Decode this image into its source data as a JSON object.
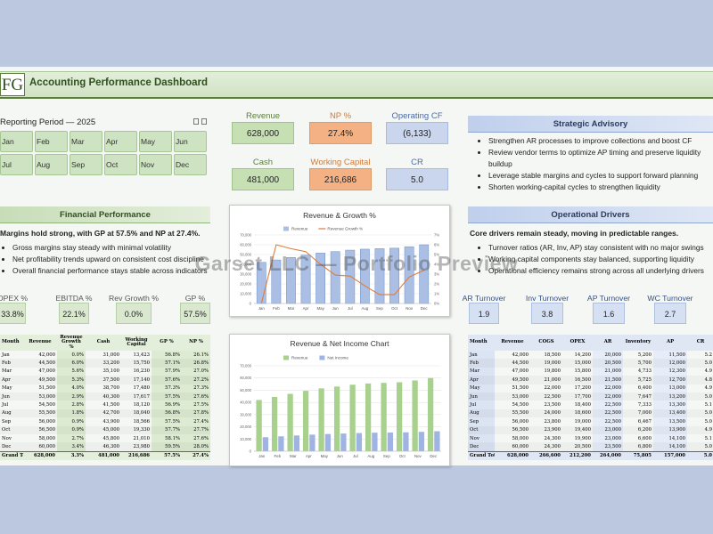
{
  "header": {
    "logo": "FG",
    "title": "Accounting Performance Dashboard"
  },
  "watermark": "Garset LLC — Portfolio Preview",
  "period": {
    "title": "Reporting Period — 2025",
    "months": [
      "Jan",
      "Feb",
      "Mar",
      "Apr",
      "May",
      "Jun",
      "Jul",
      "Aug",
      "Sep",
      "Oct",
      "Nov",
      "Dec"
    ]
  },
  "kpis": [
    {
      "label": "Revenue",
      "value": "628,000"
    },
    {
      "label": "NP %",
      "value": "27.4%"
    },
    {
      "label": "Operating CF",
      "value": "(6,133)"
    },
    {
      "label": "Cash",
      "value": "481,000"
    },
    {
      "label": "Working Capital",
      "value": "216,686"
    },
    {
      "label": "CR",
      "value": "5.0"
    }
  ],
  "strategic_advisory": {
    "title": "Strategic Advisory",
    "bullets": [
      "Strengthen AR processes to improve collections and boost CF",
      "Review vendor terms to optimize AP timing and preserve liquidity buildup",
      "Leverage stable margins and cycles to support forward planning",
      "Shorten working-capital cycles to strengthen liquidity"
    ]
  },
  "financial_performance": {
    "title": "Financial Performance",
    "summary": "Margins hold strong, with GP at 57.5% and NP at 27.4%.",
    "bullets": [
      "Gross margins stay steady with minimal volatility",
      "Net profitability trends upward on consistent cost discipline",
      "Overall financial performance stays stable across indicators"
    ],
    "ratios": [
      {
        "label": "OPEX %",
        "value": "33.8%"
      },
      {
        "label": "EBITDA %",
        "value": "22.1%"
      },
      {
        "label": "Rev Growth %",
        "value": "0.0%"
      },
      {
        "label": "GP %",
        "value": "57.5%"
      }
    ]
  },
  "operational_drivers": {
    "title": "Operational Drivers",
    "summary": "Core drivers remain steady, moving in predictable ranges.",
    "bullets": [
      "Turnover ratios (AR, Inv, AP) stay consistent with no major swings",
      "Working capital components stay balanced, supporting liquidity",
      "Operational efficiency remains strong across all underlying drivers"
    ],
    "ratios": [
      {
        "label": "AR Turnover",
        "value": "1.9"
      },
      {
        "label": "Inv Turnover",
        "value": "3.8"
      },
      {
        "label": "AP Turnover",
        "value": "1.6"
      },
      {
        "label": "WC Turnover",
        "value": "2.7"
      }
    ]
  },
  "chart_data": [
    {
      "type": "combo",
      "title": "Revenue & Growth %",
      "categories": [
        "Jan",
        "Feb",
        "Mar",
        "Apr",
        "May",
        "Jun",
        "Jul",
        "Aug",
        "Sep",
        "Oct",
        "Nov",
        "Dec"
      ],
      "series": [
        {
          "name": "Revenue",
          "type": "bar",
          "color": "#aabfe3",
          "values": [
            42000,
            44500,
            47000,
            49500,
            51500,
            53000,
            54500,
            55500,
            56000,
            56500,
            58000,
            60000
          ]
        },
        {
          "name": "Revenue Growth %",
          "type": "line",
          "axis": "y2",
          "color": "#e07b39",
          "values": [
            0,
            6.0,
            5.6,
            5.3,
            4.0,
            2.9,
            2.8,
            1.8,
            0.9,
            0.9,
            2.7,
            3.4
          ]
        }
      ],
      "ylim": [
        0,
        70000
      ],
      "yticks": [
        0,
        {
          "value": 10000,
          "label": "10,000"
        },
        {
          "value": 20000,
          "label": "20,000"
        },
        {
          "value": 30000,
          "label": "30,000"
        },
        {
          "value": 40000,
          "label": "40,000"
        },
        {
          "value": 50000,
          "label": "50,000"
        },
        {
          "value": 60000,
          "label": "60,000"
        },
        {
          "value": 70000,
          "label": "70,000"
        }
      ],
      "y2lim": [
        0,
        7
      ],
      "y2ticks": [
        {
          "value": 0,
          "label": "0%"
        },
        {
          "value": 1,
          "label": "1%"
        },
        {
          "value": 2,
          "label": "2%"
        },
        {
          "value": 3,
          "label": "3%"
        },
        {
          "value": 4,
          "label": "4%"
        },
        {
          "value": 5,
          "label": "5%"
        },
        {
          "value": 6,
          "label": "6%"
        },
        {
          "value": 7,
          "label": "7%"
        }
      ],
      "grid": true
    },
    {
      "type": "bar",
      "title": "Revenue & Net Income Chart",
      "categories": [
        "Jan",
        "Feb",
        "Mar",
        "Apr",
        "May",
        "Jun",
        "Jul",
        "Aug",
        "Sep",
        "Oct",
        "Nov",
        "Dec"
      ],
      "series": [
        {
          "name": "Revenue",
          "color": "#a9d18e",
          "values": [
            42000,
            44500,
            47000,
            49500,
            51500,
            53000,
            54500,
            55500,
            56000,
            56500,
            58000,
            60000
          ]
        },
        {
          "name": "Net Income",
          "color": "#9fb4e3",
          "values": [
            11500,
            12200,
            12900,
            13600,
            14100,
            14500,
            14900,
            15200,
            15300,
            15500,
            15900,
            16400
          ]
        }
      ],
      "ylim": [
        0,
        70000
      ],
      "yticks": [
        0,
        {
          "value": 10000,
          "label": "10,000"
        },
        {
          "value": 20000,
          "label": "20,000"
        },
        {
          "value": 30000,
          "label": "30,000"
        },
        {
          "value": 40000,
          "label": "40,000"
        },
        {
          "value": 50000,
          "label": "50,000"
        },
        {
          "value": 60000,
          "label": "60,000"
        },
        {
          "value": 70000,
          "label": "70,000"
        }
      ],
      "grid": true
    }
  ],
  "financial_table": {
    "columns": [
      "Month",
      "Revenue",
      "Revenue Growth %",
      "Cash",
      "Working Capital",
      "GP %",
      "NP %"
    ],
    "rows": [
      [
        "Jan",
        "42,000",
        "0.0%",
        "31,000",
        "13,423",
        "56.8%",
        "26.1%"
      ],
      [
        "Feb",
        "44,500",
        "6.0%",
        "33,200",
        "15,750",
        "57.1%",
        "26.8%"
      ],
      [
        "Mar",
        "47,000",
        "5.6%",
        "35,100",
        "16,230",
        "57.9%",
        "27.0%"
      ],
      [
        "Apr",
        "49,500",
        "5.3%",
        "37,500",
        "17,140",
        "57.6%",
        "27.2%"
      ],
      [
        "May",
        "51,500",
        "4.0%",
        "38,700",
        "17,480",
        "57.3%",
        "27.3%"
      ],
      [
        "Jun",
        "53,000",
        "2.9%",
        "40,300",
        "17,617",
        "57.5%",
        "27.6%"
      ],
      [
        "Jul",
        "54,500",
        "2.8%",
        "41,500",
        "18,120",
        "56.9%",
        "27.5%"
      ],
      [
        "Aug",
        "55,500",
        "1.8%",
        "42,700",
        "18,040",
        "56.8%",
        "27.8%"
      ],
      [
        "Sep",
        "56,000",
        "0.9%",
        "43,900",
        "18,566",
        "57.5%",
        "27.4%"
      ],
      [
        "Oct",
        "56,500",
        "0.9%",
        "45,000",
        "19,330",
        "57.7%",
        "27.7%"
      ],
      [
        "Nov",
        "58,000",
        "2.7%",
        "45,800",
        "21,010",
        "58.1%",
        "27.6%"
      ],
      [
        "Dec",
        "60,000",
        "3.4%",
        "46,300",
        "23,980",
        "59.5%",
        "28.0%"
      ]
    ],
    "total": [
      "Grand Total",
      "628,000",
      "3.3%",
      "481,000",
      "216,686",
      "57.5%",
      "27.4%"
    ]
  },
  "balance_table": {
    "columns": [
      "Month",
      "Revenue",
      "COGS",
      "OPEX",
      "AR",
      "Inventory",
      "AP",
      "CR"
    ],
    "rows": [
      [
        "Jan",
        "42,000",
        "18,500",
        "14,200",
        "20,000",
        "5,200",
        "11,500",
        "5.2"
      ],
      [
        "Feb",
        "44,500",
        "19,000",
        "15,000",
        "20,500",
        "5,700",
        "12,000",
        "5.0"
      ],
      [
        "Mar",
        "47,000",
        "19,800",
        "15,800",
        "21,000",
        "4,733",
        "12,300",
        "4.9"
      ],
      [
        "Apr",
        "49,500",
        "21,000",
        "16,500",
        "21,500",
        "5,725",
        "12,700",
        "4.8"
      ],
      [
        "May",
        "51,500",
        "22,000",
        "17,200",
        "22,000",
        "6,400",
        "13,000",
        "4.9"
      ],
      [
        "Jun",
        "53,000",
        "22,500",
        "17,700",
        "22,000",
        "7,647",
        "13,200",
        "5.0"
      ],
      [
        "Jul",
        "54,500",
        "23,500",
        "18,400",
        "22,500",
        "7,333",
        "13,300",
        "5.1"
      ],
      [
        "Aug",
        "55,500",
        "24,000",
        "18,600",
        "22,500",
        "7,000",
        "13,400",
        "5.0"
      ],
      [
        "Sep",
        "56,000",
        "23,800",
        "19,000",
        "22,500",
        "6,467",
        "13,500",
        "5.0"
      ],
      [
        "Oct",
        "56,500",
        "23,900",
        "19,400",
        "23,000",
        "6,200",
        "13,900",
        "4.9"
      ],
      [
        "Nov",
        "58,000",
        "24,300",
        "19,900",
        "23,000",
        "6,600",
        "14,100",
        "5.1"
      ],
      [
        "Dec",
        "60,000",
        "24,300",
        "20,500",
        "23,500",
        "6,800",
        "14,100",
        "5.0"
      ]
    ],
    "total": [
      "Grand Total",
      "628,000",
      "266,600",
      "212,200",
      "264,000",
      "75,805",
      "157,000",
      "5.0"
    ]
  }
}
